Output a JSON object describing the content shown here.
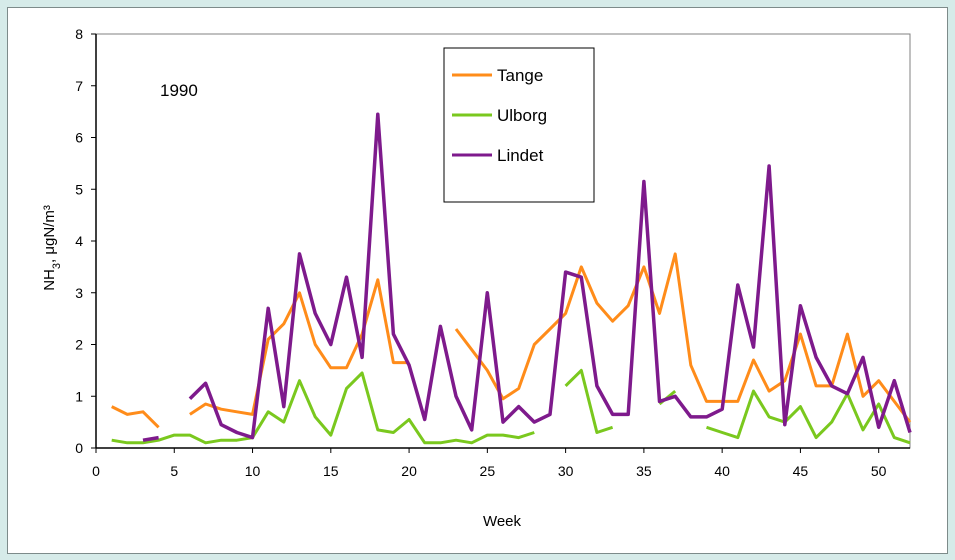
{
  "chart_data": {
    "type": "line",
    "annotation": "1990",
    "xlabel": "Week",
    "ylabel": "NH",
    "ylabel_sub": "3",
    "ylabel_units": ", μgN/m³",
    "xlim": [
      0,
      52
    ],
    "ylim": [
      0,
      8
    ],
    "xticks": [
      0,
      5,
      10,
      15,
      20,
      25,
      30,
      35,
      40,
      45,
      50
    ],
    "yticks": [
      0,
      1,
      2,
      3,
      4,
      5,
      6,
      7,
      8
    ],
    "grid": false,
    "legend_position": "top-center",
    "series": [
      {
        "name": "Tange",
        "color": "#ff8c1a",
        "points": [
          [
            1,
            0.8
          ],
          [
            2,
            0.65
          ],
          [
            3,
            0.7
          ],
          [
            4,
            0.4
          ],
          [
            null,
            null
          ],
          [
            6,
            0.65
          ],
          [
            7,
            0.85
          ],
          [
            8,
            0.75
          ],
          [
            9,
            0.7
          ],
          [
            10,
            0.65
          ],
          [
            11,
            2.1
          ],
          [
            12,
            2.4
          ],
          [
            13,
            3.0
          ],
          [
            14,
            2.0
          ],
          [
            15,
            1.55
          ],
          [
            16,
            1.55
          ],
          [
            17,
            2.2
          ],
          [
            18,
            3.25
          ],
          [
            19,
            1.65
          ],
          [
            20,
            1.65
          ],
          [
            null,
            null
          ],
          [
            23,
            2.3
          ],
          [
            24,
            1.9
          ],
          [
            25,
            1.5
          ],
          [
            26,
            0.95
          ],
          [
            27,
            1.15
          ],
          [
            28,
            2.0
          ],
          [
            29,
            2.3
          ],
          [
            30,
            2.6
          ],
          [
            31,
            3.5
          ],
          [
            32,
            2.8
          ],
          [
            33,
            2.45
          ],
          [
            34,
            2.75
          ],
          [
            35,
            3.5
          ],
          [
            36,
            2.6
          ],
          [
            37,
            3.75
          ],
          [
            38,
            1.6
          ],
          [
            39,
            0.9
          ],
          [
            40,
            0.9
          ],
          [
            41,
            0.9
          ],
          [
            42,
            1.7
          ],
          [
            43,
            1.1
          ],
          [
            44,
            1.3
          ],
          [
            45,
            2.2
          ],
          [
            46,
            1.2
          ],
          [
            47,
            1.2
          ],
          [
            48,
            2.2
          ],
          [
            49,
            1.0
          ],
          [
            50,
            1.3
          ],
          [
            51,
            0.9
          ],
          [
            52,
            0.5
          ]
        ]
      },
      {
        "name": "Ulborg",
        "color": "#7ac81e",
        "points": [
          [
            1,
            0.15
          ],
          [
            2,
            0.1
          ],
          [
            3,
            0.1
          ],
          [
            4,
            0.15
          ],
          [
            5,
            0.25
          ],
          [
            6,
            0.25
          ],
          [
            7,
            0.1
          ],
          [
            8,
            0.15
          ],
          [
            9,
            0.15
          ],
          [
            10,
            0.2
          ],
          [
            11,
            0.7
          ],
          [
            12,
            0.5
          ],
          [
            13,
            1.3
          ],
          [
            14,
            0.6
          ],
          [
            15,
            0.25
          ],
          [
            16,
            1.15
          ],
          [
            17,
            1.45
          ],
          [
            18,
            0.35
          ],
          [
            19,
            0.3
          ],
          [
            20,
            0.55
          ],
          [
            21,
            0.1
          ],
          [
            22,
            0.1
          ],
          [
            23,
            0.15
          ],
          [
            24,
            0.1
          ],
          [
            25,
            0.25
          ],
          [
            26,
            0.25
          ],
          [
            27,
            0.2
          ],
          [
            28,
            0.3
          ],
          [
            null,
            null
          ],
          [
            30,
            1.2
          ],
          [
            31,
            1.5
          ],
          [
            32,
            0.3
          ],
          [
            33,
            0.4
          ],
          [
            null,
            null
          ],
          [
            36,
            0.85
          ],
          [
            37,
            1.1
          ],
          [
            null,
            null
          ],
          [
            39,
            0.4
          ],
          [
            40,
            0.3
          ],
          [
            41,
            0.2
          ],
          [
            42,
            1.1
          ],
          [
            43,
            0.6
          ],
          [
            44,
            0.5
          ],
          [
            45,
            0.8
          ],
          [
            46,
            0.2
          ],
          [
            47,
            0.5
          ],
          [
            48,
            1.05
          ],
          [
            49,
            0.35
          ],
          [
            50,
            0.85
          ],
          [
            51,
            0.2
          ],
          [
            52,
            0.1
          ]
        ]
      },
      {
        "name": "Lindet",
        "color": "#7e1a8c",
        "points": [
          [
            3,
            0.15
          ],
          [
            4,
            0.2
          ],
          [
            null,
            null
          ],
          [
            6,
            0.95
          ],
          [
            7,
            1.25
          ],
          [
            8,
            0.45
          ],
          [
            9,
            0.3
          ],
          [
            10,
            0.2
          ],
          [
            11,
            2.7
          ],
          [
            12,
            0.8
          ],
          [
            13,
            3.75
          ],
          [
            14,
            2.6
          ],
          [
            15,
            2.0
          ],
          [
            16,
            3.3
          ],
          [
            17,
            1.75
          ],
          [
            18,
            6.45
          ],
          [
            19,
            2.2
          ],
          [
            20,
            1.6
          ],
          [
            21,
            0.55
          ],
          [
            22,
            2.35
          ],
          [
            23,
            1.0
          ],
          [
            24,
            0.35
          ],
          [
            25,
            3.0
          ],
          [
            26,
            0.5
          ],
          [
            27,
            0.8
          ],
          [
            28,
            0.5
          ],
          [
            29,
            0.65
          ],
          [
            30,
            3.4
          ],
          [
            31,
            3.3
          ],
          [
            32,
            1.2
          ],
          [
            33,
            0.65
          ],
          [
            34,
            0.65
          ],
          [
            35,
            5.15
          ],
          [
            36,
            0.9
          ],
          [
            37,
            1.0
          ],
          [
            38,
            0.6
          ],
          [
            39,
            0.6
          ],
          [
            40,
            0.75
          ],
          [
            41,
            3.15
          ],
          [
            42,
            1.95
          ],
          [
            43,
            5.45
          ],
          [
            44,
            0.45
          ],
          [
            45,
            2.75
          ],
          [
            46,
            1.75
          ],
          [
            47,
            1.2
          ],
          [
            48,
            1.05
          ],
          [
            49,
            1.75
          ],
          [
            50,
            0.4
          ],
          [
            51,
            1.3
          ],
          [
            52,
            0.3
          ]
        ]
      }
    ]
  }
}
